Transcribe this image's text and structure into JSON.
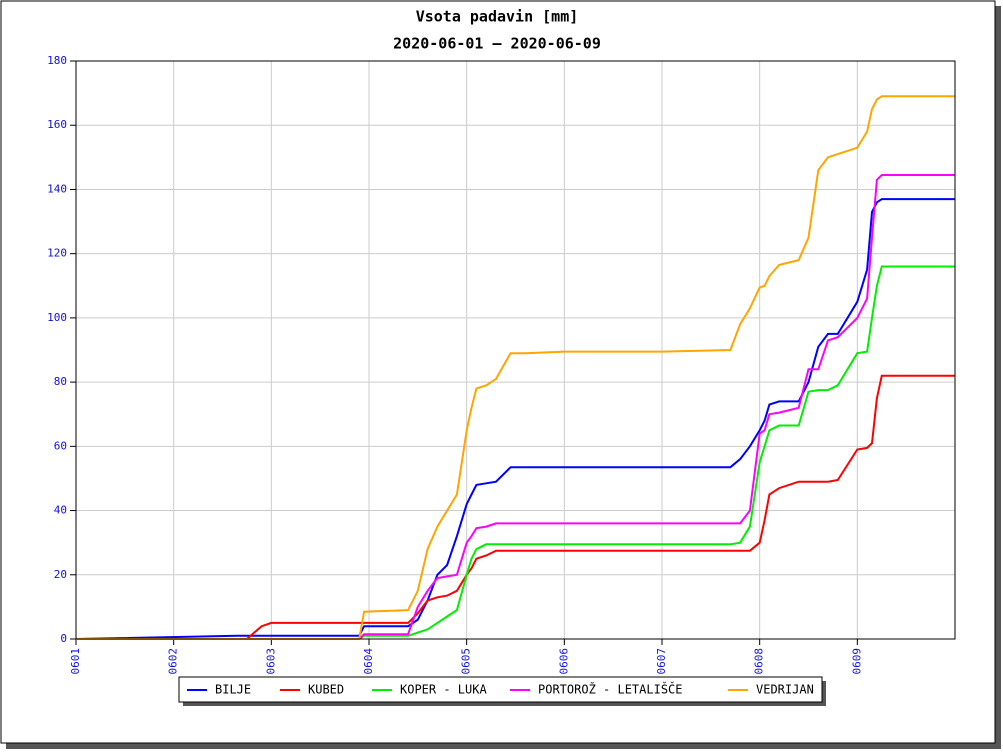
{
  "chart_data": {
    "type": "line",
    "title": "Vsota padavin [mm]",
    "subtitle": "2020-06-01 – 2020-06-09",
    "x": [
      1,
      2.65,
      2.75,
      2.9,
      3.0,
      3.9,
      3.95,
      4.4,
      4.5,
      4.6,
      4.7,
      4.8,
      4.9,
      5.0,
      5.05,
      5.1,
      5.2,
      5.3,
      5.45,
      5.6,
      6.0,
      7.0,
      7.7,
      7.8,
      7.9,
      8.0,
      8.05,
      8.1,
      8.2,
      8.4,
      8.5,
      8.6,
      8.7,
      8.8,
      9.0,
      9.1,
      9.15,
      9.2,
      9.25,
      9.3,
      10
    ],
    "series": [
      {
        "name": "BILJE",
        "color": "#0000ff",
        "values": [
          0,
          1,
          1,
          1,
          1,
          1,
          4,
          4,
          6,
          12,
          20,
          23,
          32,
          42,
          45,
          48,
          48.5,
          49,
          53.5,
          53.5,
          53.5,
          53.5,
          53.5,
          56,
          60,
          65,
          68,
          73,
          74,
          74,
          80,
          91,
          95,
          95,
          105,
          115,
          133,
          136,
          137,
          137,
          137
        ]
      },
      {
        "name": "KUBED",
        "color": "#ff0000",
        "values": [
          0,
          0,
          0,
          4,
          5,
          5,
          5,
          5,
          8,
          12,
          13,
          13.5,
          15,
          20,
          22,
          25,
          26,
          27.5,
          27.5,
          27.5,
          27.5,
          27.5,
          27.5,
          27.5,
          27.5,
          30,
          37,
          45,
          47,
          49,
          49,
          49,
          49,
          49.5,
          59,
          59.5,
          61,
          75,
          82,
          82,
          82
        ]
      },
      {
        "name": "KOPER - LUKA",
        "color": "#00ee00",
        "values": [
          0,
          0,
          0,
          0,
          0,
          0,
          1,
          1,
          2,
          3,
          5,
          7,
          9,
          20,
          25,
          28,
          29.5,
          29.5,
          29.5,
          29.5,
          29.5,
          29.5,
          29.5,
          30,
          35,
          55,
          60,
          65,
          66.5,
          66.5,
          77,
          77.5,
          77.5,
          79,
          89,
          89.5,
          100,
          110,
          116,
          116,
          116
        ]
      },
      {
        "name": "PORTOROŽ - LETALIŠČE",
        "color": "#ff00ff",
        "values": [
          0,
          0,
          0,
          0,
          0,
          0,
          1.5,
          1.5,
          10,
          15,
          19,
          19.5,
          20,
          30,
          32,
          34.5,
          35,
          36,
          36,
          36,
          36,
          36,
          36,
          36,
          40,
          64,
          65,
          70,
          70.5,
          72,
          84,
          84,
          93,
          94,
          100,
          106,
          125,
          143,
          144.5,
          144.5,
          144.5
        ]
      },
      {
        "name": "VEDRIJAN",
        "color": "#ffa500",
        "values": [
          0,
          0,
          0,
          0,
          0,
          0,
          8.5,
          9,
          15,
          28,
          35,
          40,
          45,
          65,
          72,
          78,
          79,
          81,
          89,
          89,
          89.5,
          89.5,
          90,
          98,
          103,
          109.5,
          110,
          113,
          116.5,
          118,
          125,
          146,
          150,
          151,
          153,
          158,
          165,
          168,
          169,
          169,
          169
        ]
      }
    ],
    "xlim": [
      1,
      10
    ],
    "ylim": [
      0,
      180
    ],
    "xticks": [
      {
        "value": 1,
        "label": "0601"
      },
      {
        "value": 2,
        "label": "0602"
      },
      {
        "value": 3,
        "label": "0603"
      },
      {
        "value": 4,
        "label": "0604"
      },
      {
        "value": 5,
        "label": "0605"
      },
      {
        "value": 6,
        "label": "0606"
      },
      {
        "value": 7,
        "label": "0607"
      },
      {
        "value": 8,
        "label": "0608"
      },
      {
        "value": 9,
        "label": "0609"
      }
    ],
    "yticks": [
      0,
      20,
      40,
      60,
      80,
      100,
      120,
      140,
      160,
      180
    ],
    "grid": true
  }
}
